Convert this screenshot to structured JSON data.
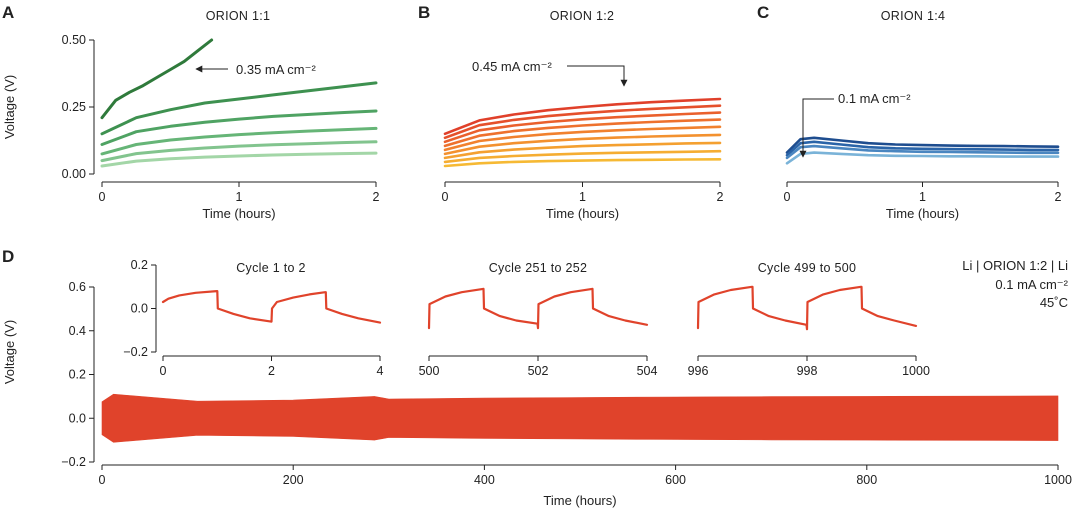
{
  "panels": {
    "A": {
      "letter": "A",
      "title": "ORION 1:1",
      "annotation": "0.35 mA cm⁻²"
    },
    "B": {
      "letter": "B",
      "title": "ORION 1:2",
      "annotation": "0.45 mA cm⁻²"
    },
    "C": {
      "letter": "C",
      "title": "ORION 1:4",
      "annotation": "0.1 mA cm⁻²"
    },
    "D": {
      "letter": "D",
      "cell_label": "Li | ORION 1:2 | Li",
      "current": "0.1 mA cm⁻²",
      "temperature": "45˚C"
    }
  },
  "chart_data": [
    {
      "id": "A",
      "type": "line",
      "title": "ORION 1:1",
      "xlabel": "Time (hours)",
      "ylabel": "Voltage (V)",
      "xlim": [
        0,
        2
      ],
      "ylim": [
        0,
        0.5
      ],
      "xticks": [
        0,
        1,
        2
      ],
      "yticks": [
        0.0,
        0.25,
        0.5
      ],
      "xticklabels": [
        "0",
        "1",
        "2"
      ],
      "yticklabels": [
        "0.00",
        "0.25",
        "0.50"
      ],
      "annotation": "0.35 mA cm⁻²",
      "series": [
        {
          "name": "curve 1 (top)",
          "color": "#2f7a3b",
          "x": [
            0,
            0.1,
            0.2,
            0.3,
            0.4,
            0.5,
            0.6,
            0.7,
            0.8
          ],
          "y": [
            0.21,
            0.275,
            0.305,
            0.33,
            0.36,
            0.39,
            0.42,
            0.46,
            0.5
          ]
        },
        {
          "name": "curve 2",
          "color": "#3e9150",
          "x": [
            0,
            0.25,
            0.5,
            0.75,
            1,
            1.25,
            1.5,
            1.75,
            2
          ],
          "y": [
            0.15,
            0.21,
            0.24,
            0.265,
            0.28,
            0.295,
            0.31,
            0.325,
            0.34
          ]
        },
        {
          "name": "curve 3",
          "color": "#4fa363",
          "x": [
            0,
            0.25,
            0.5,
            0.75,
            1,
            1.25,
            1.5,
            1.75,
            2
          ],
          "y": [
            0.11,
            0.158,
            0.178,
            0.193,
            0.205,
            0.215,
            0.222,
            0.229,
            0.235
          ]
        },
        {
          "name": "curve 4",
          "color": "#66b577",
          "x": [
            0,
            0.25,
            0.5,
            0.75,
            1,
            1.25,
            1.5,
            1.75,
            2
          ],
          "y": [
            0.075,
            0.11,
            0.127,
            0.138,
            0.147,
            0.154,
            0.16,
            0.165,
            0.17
          ]
        },
        {
          "name": "curve 5",
          "color": "#82c48e",
          "x": [
            0,
            0.25,
            0.5,
            0.75,
            1,
            1.25,
            1.5,
            1.75,
            2
          ],
          "y": [
            0.05,
            0.076,
            0.088,
            0.097,
            0.104,
            0.109,
            0.113,
            0.117,
            0.12
          ]
        },
        {
          "name": "curve 6 (bottom)",
          "color": "#a3d6a7",
          "x": [
            0,
            0.25,
            0.5,
            0.75,
            1,
            1.25,
            1.5,
            1.75,
            2
          ],
          "y": [
            0.03,
            0.048,
            0.057,
            0.063,
            0.067,
            0.071,
            0.074,
            0.076,
            0.078
          ]
        }
      ]
    },
    {
      "id": "B",
      "type": "line",
      "title": "ORION 1:2",
      "xlabel": "Time (hours)",
      "ylabel": "",
      "xlim": [
        0,
        2
      ],
      "ylim": [
        0,
        0.5
      ],
      "xticks": [
        0,
        1,
        2
      ],
      "xticklabels": [
        "0",
        "1",
        "2"
      ],
      "annotation": "0.45 mA cm⁻²",
      "series": [
        {
          "name": "curve 1 (top)",
          "color": "#e0402a",
          "x": [
            0,
            0.25,
            0.5,
            0.75,
            1,
            1.25,
            1.5,
            1.75,
            2
          ],
          "y": [
            0.15,
            0.2,
            0.222,
            0.238,
            0.25,
            0.26,
            0.268,
            0.274,
            0.28
          ]
        },
        {
          "name": "curve 2",
          "color": "#e5502b",
          "x": [
            0,
            0.25,
            0.5,
            0.75,
            1,
            1.25,
            1.5,
            1.75,
            2
          ],
          "y": [
            0.135,
            0.182,
            0.202,
            0.216,
            0.227,
            0.236,
            0.243,
            0.249,
            0.255
          ]
        },
        {
          "name": "curve 3",
          "color": "#ea602c",
          "x": [
            0,
            0.25,
            0.5,
            0.75,
            1,
            1.25,
            1.5,
            1.75,
            2
          ],
          "y": [
            0.12,
            0.163,
            0.181,
            0.194,
            0.204,
            0.212,
            0.218,
            0.224,
            0.229
          ]
        },
        {
          "name": "curve 4",
          "color": "#ee712d",
          "x": [
            0,
            0.25,
            0.5,
            0.75,
            1,
            1.25,
            1.5,
            1.75,
            2
          ],
          "y": [
            0.105,
            0.143,
            0.16,
            0.172,
            0.181,
            0.188,
            0.194,
            0.199,
            0.203
          ]
        },
        {
          "name": "curve 5",
          "color": "#f1812e",
          "x": [
            0,
            0.25,
            0.5,
            0.75,
            1,
            1.25,
            1.5,
            1.75,
            2
          ],
          "y": [
            0.09,
            0.123,
            0.138,
            0.149,
            0.157,
            0.163,
            0.168,
            0.172,
            0.176
          ]
        },
        {
          "name": "curve 6",
          "color": "#f3912f",
          "x": [
            0,
            0.25,
            0.5,
            0.75,
            1,
            1.25,
            1.5,
            1.75,
            2
          ],
          "y": [
            0.075,
            0.102,
            0.115,
            0.124,
            0.131,
            0.136,
            0.14,
            0.143,
            0.146
          ]
        },
        {
          "name": "curve 7",
          "color": "#f4a030",
          "x": [
            0,
            0.25,
            0.5,
            0.75,
            1,
            1.25,
            1.5,
            1.75,
            2
          ],
          "y": [
            0.06,
            0.081,
            0.091,
            0.098,
            0.104,
            0.108,
            0.111,
            0.114,
            0.116
          ]
        },
        {
          "name": "curve 8",
          "color": "#f5ad32",
          "x": [
            0,
            0.25,
            0.5,
            0.75,
            1,
            1.25,
            1.5,
            1.75,
            2
          ],
          "y": [
            0.045,
            0.06,
            0.067,
            0.072,
            0.076,
            0.079,
            0.081,
            0.083,
            0.085
          ]
        },
        {
          "name": "curve 9 (bottom)",
          "color": "#f6b934",
          "x": [
            0,
            0.25,
            0.5,
            0.75,
            1,
            1.25,
            1.5,
            1.75,
            2
          ],
          "y": [
            0.03,
            0.04,
            0.045,
            0.048,
            0.05,
            0.052,
            0.053,
            0.054,
            0.055
          ]
        }
      ]
    },
    {
      "id": "C",
      "type": "line",
      "title": "ORION 1:4",
      "xlabel": "Time (hours)",
      "ylabel": "",
      "xlim": [
        0,
        2
      ],
      "ylim": [
        0,
        0.5
      ],
      "xticks": [
        0,
        1,
        2
      ],
      "xticklabels": [
        "0",
        "1",
        "2"
      ],
      "annotation": "0.1 mA cm⁻²",
      "series": [
        {
          "name": "curve 1 (top)",
          "color": "#1e4d8f",
          "x": [
            0,
            0.1,
            0.2,
            0.4,
            0.6,
            0.8,
            1,
            1.2,
            1.4,
            1.6,
            1.8,
            2
          ],
          "y": [
            0.08,
            0.13,
            0.135,
            0.125,
            0.115,
            0.11,
            0.108,
            0.106,
            0.105,
            0.104,
            0.103,
            0.102
          ]
        },
        {
          "name": "curve 2",
          "color": "#2a64a8",
          "x": [
            0,
            0.1,
            0.2,
            0.4,
            0.6,
            0.8,
            1,
            1.2,
            1.4,
            1.6,
            1.8,
            2
          ],
          "y": [
            0.07,
            0.115,
            0.12,
            0.11,
            0.1,
            0.096,
            0.094,
            0.093,
            0.092,
            0.091,
            0.09,
            0.09
          ]
        },
        {
          "name": "curve 3",
          "color": "#4a86c0",
          "x": [
            0,
            0.1,
            0.2,
            0.4,
            0.6,
            0.8,
            1,
            1.2,
            1.4,
            1.6,
            1.8,
            2
          ],
          "y": [
            0.06,
            0.1,
            0.104,
            0.096,
            0.088,
            0.085,
            0.083,
            0.082,
            0.081,
            0.08,
            0.079,
            0.079
          ]
        },
        {
          "name": "curve 4 (bottom)",
          "color": "#7ab3d8",
          "x": [
            0,
            0.1,
            0.2,
            0.4,
            0.6,
            0.8,
            1,
            1.2,
            1.4,
            1.6,
            1.8,
            2
          ],
          "y": [
            0.04,
            0.075,
            0.08,
            0.075,
            0.07,
            0.068,
            0.067,
            0.066,
            0.066,
            0.065,
            0.065,
            0.065
          ]
        }
      ]
    },
    {
      "id": "D-inset-1",
      "type": "line",
      "title": "Cycle 1 to 2",
      "xlim": [
        0,
        4
      ],
      "ylim": [
        -0.2,
        0.2
      ],
      "xticks": [
        0,
        2,
        4
      ],
      "xticklabels": [
        "0",
        "2",
        "4"
      ],
      "yticks": [
        -0.2,
        0.0,
        0.2
      ],
      "yticklabels": [
        "−0.2",
        "0.0",
        "0.2"
      ],
      "series": [
        {
          "name": "voltage",
          "color": "#e0432b",
          "x": [
            0,
            0.1,
            0.3,
            0.6,
            0.99,
            1.0,
            1.01,
            1.3,
            1.6,
            1.99,
            2.0,
            2.01,
            2.1,
            2.4,
            2.7,
            2.99,
            3.0,
            3.01,
            3.3,
            3.6,
            4.0
          ],
          "y": [
            0.03,
            0.045,
            0.06,
            0.072,
            0.08,
            0.08,
            0.0,
            -0.025,
            -0.045,
            -0.06,
            -0.06,
            0.0,
            0.03,
            0.05,
            0.065,
            0.075,
            0.075,
            0.0,
            -0.025,
            -0.045,
            -0.065
          ]
        }
      ]
    },
    {
      "id": "D-inset-2",
      "type": "line",
      "title": "Cycle 251 to 252",
      "xlim": [
        500,
        504
      ],
      "ylim": [
        -0.2,
        0.2
      ],
      "xticks": [
        500,
        502,
        504
      ],
      "xticklabels": [
        "500",
        "502",
        "504"
      ],
      "series": [
        {
          "name": "voltage",
          "color": "#e0432b",
          "x": [
            500,
            500.01,
            500.3,
            500.6,
            500.99,
            501.0,
            501.01,
            501.3,
            501.6,
            501.99,
            502.0,
            502.01,
            502.3,
            502.6,
            502.99,
            503.0,
            503.01,
            503.3,
            503.6,
            504.0
          ],
          "y": [
            -0.09,
            0.02,
            0.055,
            0.075,
            0.09,
            0.09,
            0.0,
            -0.035,
            -0.055,
            -0.07,
            -0.09,
            0.02,
            0.055,
            0.075,
            0.09,
            0.09,
            0.0,
            -0.035,
            -0.055,
            -0.075
          ]
        }
      ]
    },
    {
      "id": "D-inset-3",
      "type": "line",
      "title": "Cycle 499 to 500",
      "xlim": [
        996,
        1000
      ],
      "ylim": [
        -0.2,
        0.2
      ],
      "xticks": [
        996,
        998,
        1000
      ],
      "xticklabels": [
        "996",
        "998",
        "1000"
      ],
      "series": [
        {
          "name": "voltage",
          "color": "#e0432b",
          "x": [
            996,
            996.01,
            996.3,
            996.6,
            996.99,
            997.0,
            997.01,
            997.3,
            997.6,
            997.99,
            998.0,
            998.01,
            998.3,
            998.6,
            998.99,
            999.0,
            999.01,
            999.3,
            999.6,
            1000.0
          ],
          "y": [
            -0.09,
            0.03,
            0.065,
            0.085,
            0.1,
            0.1,
            0.0,
            -0.035,
            -0.055,
            -0.075,
            -0.095,
            0.03,
            0.065,
            0.085,
            0.1,
            0.1,
            0.0,
            -0.035,
            -0.055,
            -0.08
          ]
        }
      ]
    },
    {
      "id": "D",
      "type": "area",
      "title": "",
      "xlabel": "Time (hours)",
      "ylabel": "Voltage (V)",
      "xlim": [
        0,
        1000
      ],
      "ylim": [
        -0.2,
        0.6
      ],
      "xticks": [
        0,
        200,
        400,
        600,
        800,
        1000
      ],
      "xticklabels": [
        "0",
        "200",
        "400",
        "600",
        "800",
        "1000"
      ],
      "yticks": [
        -0.2,
        0.0,
        0.2,
        0.4,
        0.6
      ],
      "yticklabels": [
        "−0.2",
        "0.0",
        "0.2",
        "0.4",
        "0.6"
      ],
      "series": [
        {
          "name": "voltage envelope",
          "color": "#e0432b",
          "x": [
            0,
            12,
            100,
            200,
            285,
            300,
            400,
            500,
            600,
            700,
            800,
            900,
            1000
          ],
          "upper": [
            0.075,
            0.11,
            0.078,
            0.083,
            0.1,
            0.088,
            0.092,
            0.095,
            0.097,
            0.099,
            0.1,
            0.101,
            0.102
          ],
          "lower": [
            -0.075,
            -0.11,
            -0.078,
            -0.083,
            -0.1,
            -0.088,
            -0.092,
            -0.095,
            -0.097,
            -0.099,
            -0.1,
            -0.101,
            -0.102
          ]
        }
      ]
    }
  ]
}
